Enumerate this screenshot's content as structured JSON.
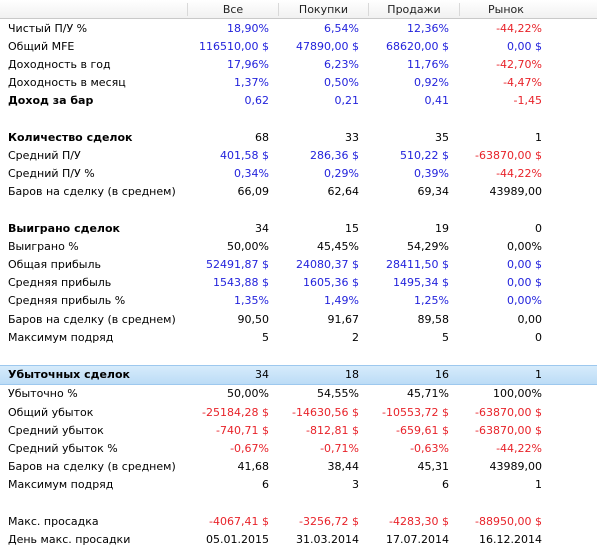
{
  "header": [
    "",
    "Все",
    "Покупки",
    "Продажи",
    "Рынок"
  ],
  "rows": [
    {
      "label": "Чистый П/У %",
      "v": [
        "18,90%",
        "6,54%",
        "12,36%",
        "-44,22%"
      ],
      "c": [
        "blue",
        "blue",
        "blue",
        "red"
      ]
    },
    {
      "label": "Общий MFE",
      "v": [
        "116510,00 $",
        "47890,00 $",
        "68620,00 $",
        "0,00 $"
      ],
      "c": [
        "blue",
        "blue",
        "blue",
        "blue"
      ]
    },
    {
      "label": "Доходность в год",
      "v": [
        "17,96%",
        "6,23%",
        "11,76%",
        "-42,70%"
      ],
      "c": [
        "blue",
        "blue",
        "blue",
        "red"
      ]
    },
    {
      "label": "Доходность в месяц",
      "v": [
        "1,37%",
        "0,50%",
        "0,92%",
        "-4,47%"
      ],
      "c": [
        "blue",
        "blue",
        "blue",
        "red"
      ]
    },
    {
      "label": "Доход за бар",
      "bold": true,
      "v": [
        "0,62",
        "0,21",
        "0,41",
        "-1,45"
      ],
      "c": [
        "blue",
        "blue",
        "blue",
        "red"
      ]
    },
    {
      "label": "",
      "v": [
        "",
        "",
        "",
        ""
      ],
      "c": [
        "black",
        "black",
        "black",
        "black"
      ]
    },
    {
      "label": "Количество сделок",
      "bold": true,
      "v": [
        "68",
        "33",
        "35",
        "1"
      ],
      "c": [
        "black",
        "black",
        "black",
        "black"
      ]
    },
    {
      "label": "Средний П/У",
      "v": [
        "401,58 $",
        "286,36 $",
        "510,22 $",
        "-63870,00 $"
      ],
      "c": [
        "blue",
        "blue",
        "blue",
        "red"
      ]
    },
    {
      "label": "Средний П/У %",
      "v": [
        "0,34%",
        "0,29%",
        "0,39%",
        "-44,22%"
      ],
      "c": [
        "blue",
        "blue",
        "blue",
        "red"
      ]
    },
    {
      "label": "Баров на сделку (в среднем)",
      "v": [
        "66,09",
        "62,64",
        "69,34",
        "43989,00"
      ],
      "c": [
        "black",
        "black",
        "black",
        "black"
      ]
    },
    {
      "label": "",
      "v": [
        "",
        "",
        "",
        ""
      ],
      "c": [
        "black",
        "black",
        "black",
        "black"
      ]
    },
    {
      "label": "Выиграно сделок",
      "bold": true,
      "v": [
        "34",
        "15",
        "19",
        "0"
      ],
      "c": [
        "black",
        "black",
        "black",
        "black"
      ]
    },
    {
      "label": "Выиграно %",
      "v": [
        "50,00%",
        "45,45%",
        "54,29%",
        "0,00%"
      ],
      "c": [
        "black",
        "black",
        "black",
        "black"
      ]
    },
    {
      "label": "Общая прибыль",
      "v": [
        "52491,87 $",
        "24080,37 $",
        "28411,50 $",
        "0,00 $"
      ],
      "c": [
        "blue",
        "blue",
        "blue",
        "blue"
      ]
    },
    {
      "label": "Средняя прибыль",
      "v": [
        "1543,88 $",
        "1605,36 $",
        "1495,34 $",
        "0,00 $"
      ],
      "c": [
        "blue",
        "blue",
        "blue",
        "blue"
      ]
    },
    {
      "label": "Средняя прибыль %",
      "v": [
        "1,35%",
        "1,49%",
        "1,25%",
        "0,00%"
      ],
      "c": [
        "blue",
        "blue",
        "blue",
        "blue"
      ]
    },
    {
      "label": "Баров на сделку (в среднем)",
      "v": [
        "90,50",
        "91,67",
        "89,58",
        "0,00"
      ],
      "c": [
        "black",
        "black",
        "black",
        "black"
      ]
    },
    {
      "label": "Максимум подряд",
      "v": [
        "5",
        "2",
        "5",
        "0"
      ],
      "c": [
        "black",
        "black",
        "black",
        "black"
      ]
    },
    {
      "label": "",
      "v": [
        "",
        "",
        "",
        ""
      ],
      "c": [
        "black",
        "black",
        "black",
        "black"
      ]
    },
    {
      "label": "Убыточных сделок",
      "bold": true,
      "selected": true,
      "v": [
        "34",
        "18",
        "16",
        "1"
      ],
      "c": [
        "black",
        "black",
        "black",
        "black"
      ]
    },
    {
      "label": "Убыточно %",
      "v": [
        "50,00%",
        "54,55%",
        "45,71%",
        "100,00%"
      ],
      "c": [
        "black",
        "black",
        "black",
        "black"
      ]
    },
    {
      "label": "Общий убыток",
      "v": [
        "-25184,28 $",
        "-14630,56 $",
        "-10553,72 $",
        "-63870,00 $"
      ],
      "c": [
        "red",
        "red",
        "red",
        "red"
      ]
    },
    {
      "label": "Средний убыток",
      "v": [
        "-740,71 $",
        "-812,81 $",
        "-659,61 $",
        "-63870,00 $"
      ],
      "c": [
        "red",
        "red",
        "red",
        "red"
      ]
    },
    {
      "label": "Средний убыток %",
      "v": [
        "-0,67%",
        "-0,71%",
        "-0,63%",
        "-44,22%"
      ],
      "c": [
        "red",
        "red",
        "red",
        "red"
      ]
    },
    {
      "label": "Баров на сделку (в среднем)",
      "v": [
        "41,68",
        "38,44",
        "45,31",
        "43989,00"
      ],
      "c": [
        "black",
        "black",
        "black",
        "black"
      ]
    },
    {
      "label": "Максимум подряд",
      "v": [
        "6",
        "3",
        "6",
        "1"
      ],
      "c": [
        "black",
        "black",
        "black",
        "black"
      ]
    },
    {
      "label": "",
      "v": [
        "",
        "",
        "",
        ""
      ],
      "c": [
        "black",
        "black",
        "black",
        "black"
      ]
    },
    {
      "label": "Макс. просадка",
      "v": [
        "-4067,41 $",
        "-3256,72 $",
        "-4283,30 $",
        "-88950,00 $"
      ],
      "c": [
        "red",
        "red",
        "red",
        "red"
      ]
    },
    {
      "label": "День макс. просадки",
      "v": [
        "05.01.2015",
        "31.03.2014",
        "17.07.2014",
        "16.12.2014"
      ],
      "c": [
        "black",
        "black",
        "black",
        "black"
      ]
    }
  ]
}
